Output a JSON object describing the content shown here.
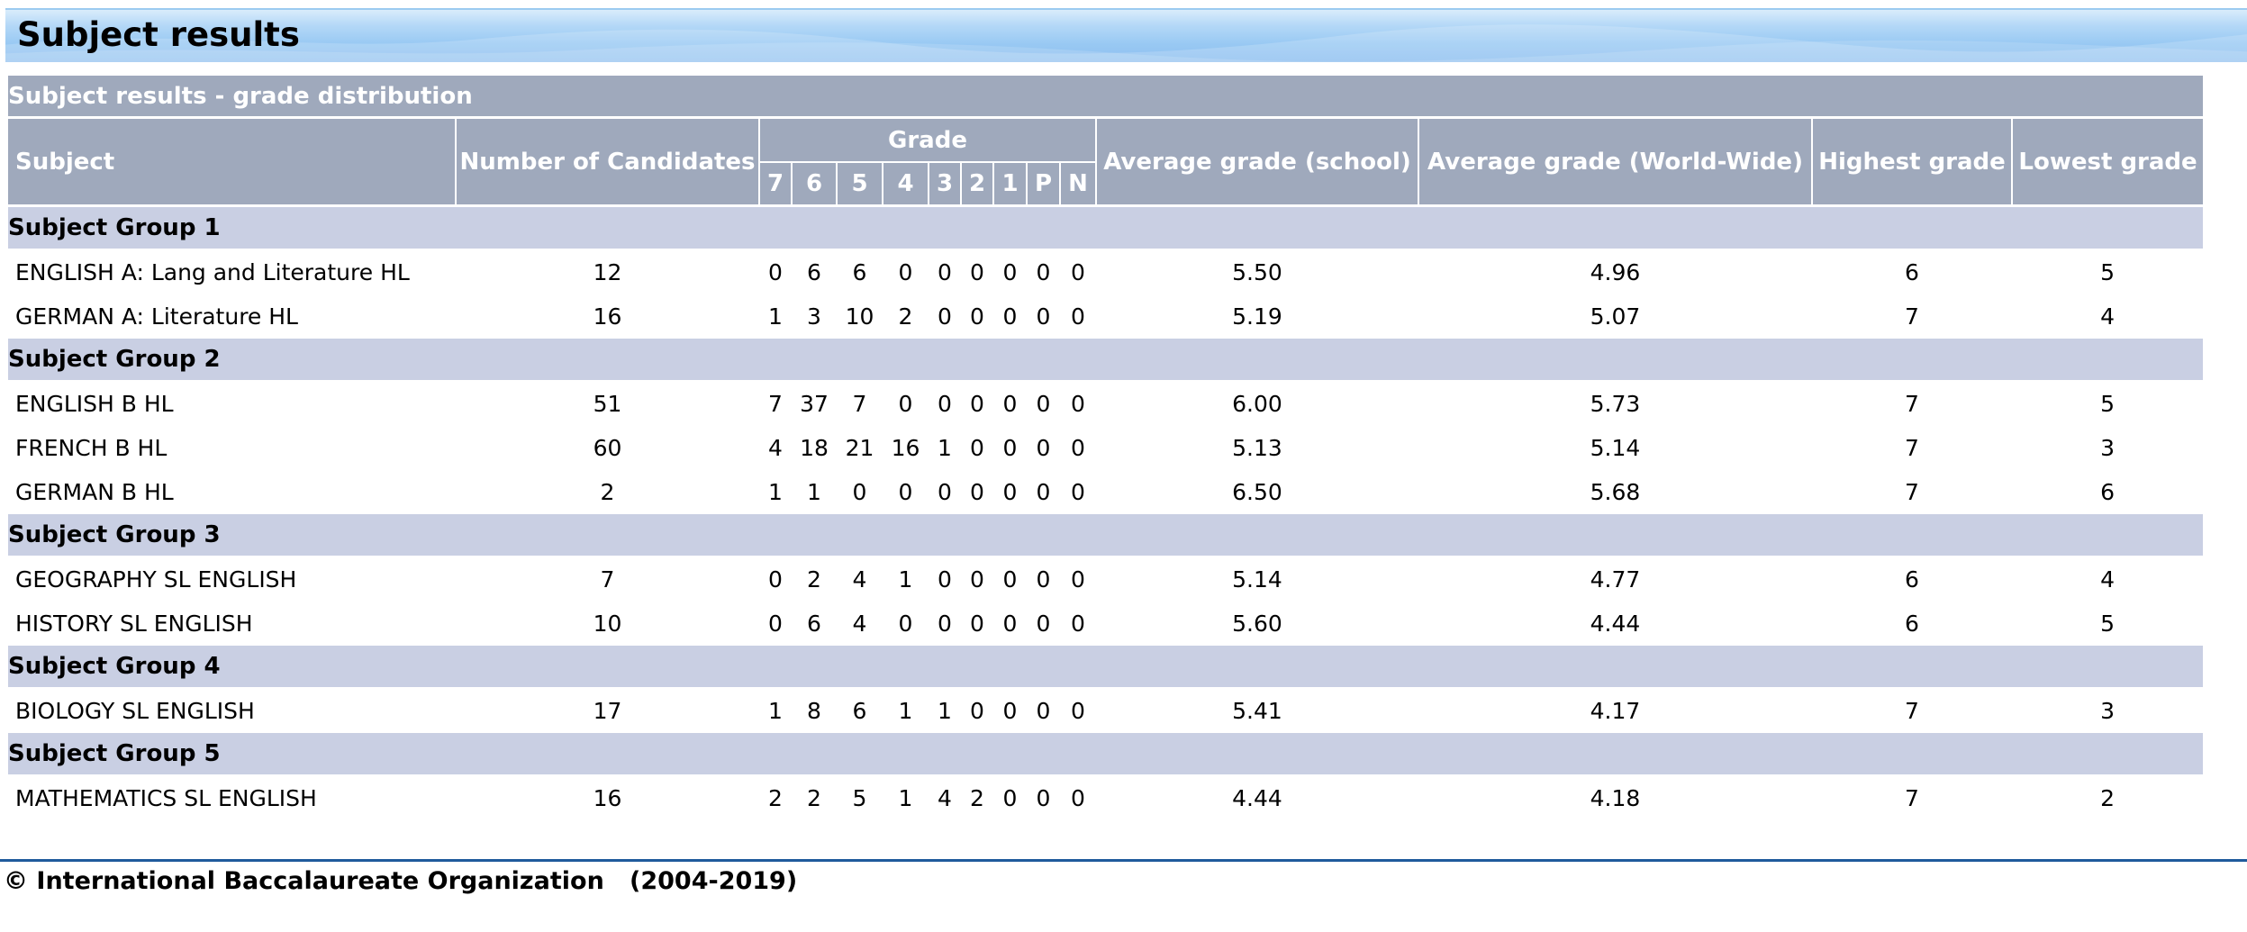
{
  "page_title": "Subject results",
  "table": {
    "caption": "Subject results - grade distribution",
    "headers": {
      "subject": "Subject",
      "candidates": "Number of Candidates",
      "grade": "Grade",
      "grade_cols": [
        "7",
        "6",
        "5",
        "4",
        "3",
        "2",
        "1",
        "P",
        "N"
      ],
      "avg_school": "Average grade (school)",
      "avg_world": "Average grade (World-Wide)",
      "highest": "Highest grade",
      "lowest": "Lowest grade"
    },
    "groups": [
      {
        "name": "Subject Group 1",
        "rows": [
          {
            "subject": "ENGLISH A: Lang and Literature HL",
            "candidates": "12",
            "grades": [
              "0",
              "6",
              "6",
              "0",
              "0",
              "0",
              "0",
              "0",
              "0"
            ],
            "avg_school": "5.50",
            "avg_world": "4.96",
            "highest": "6",
            "lowest": "5"
          },
          {
            "subject": "GERMAN A: Literature HL",
            "candidates": "16",
            "grades": [
              "1",
              "3",
              "10",
              "2",
              "0",
              "0",
              "0",
              "0",
              "0"
            ],
            "avg_school": "5.19",
            "avg_world": "5.07",
            "highest": "7",
            "lowest": "4"
          }
        ]
      },
      {
        "name": "Subject Group 2",
        "rows": [
          {
            "subject": "ENGLISH B HL",
            "candidates": "51",
            "grades": [
              "7",
              "37",
              "7",
              "0",
              "0",
              "0",
              "0",
              "0",
              "0"
            ],
            "avg_school": "6.00",
            "avg_world": "5.73",
            "highest": "7",
            "lowest": "5"
          },
          {
            "subject": "FRENCH B HL",
            "candidates": "60",
            "grades": [
              "4",
              "18",
              "21",
              "16",
              "1",
              "0",
              "0",
              "0",
              "0"
            ],
            "avg_school": "5.13",
            "avg_world": "5.14",
            "highest": "7",
            "lowest": "3"
          },
          {
            "subject": "GERMAN B HL",
            "candidates": "2",
            "grades": [
              "1",
              "1",
              "0",
              "0",
              "0",
              "0",
              "0",
              "0",
              "0"
            ],
            "avg_school": "6.50",
            "avg_world": "5.68",
            "highest": "7",
            "lowest": "6"
          }
        ]
      },
      {
        "name": "Subject Group 3",
        "rows": [
          {
            "subject": "GEOGRAPHY SL ENGLISH",
            "candidates": "7",
            "grades": [
              "0",
              "2",
              "4",
              "1",
              "0",
              "0",
              "0",
              "0",
              "0"
            ],
            "avg_school": "5.14",
            "avg_world": "4.77",
            "highest": "6",
            "lowest": "4"
          },
          {
            "subject": "HISTORY SL ENGLISH",
            "candidates": "10",
            "grades": [
              "0",
              "6",
              "4",
              "0",
              "0",
              "0",
              "0",
              "0",
              "0"
            ],
            "avg_school": "5.60",
            "avg_world": "4.44",
            "highest": "6",
            "lowest": "5"
          }
        ]
      },
      {
        "name": "Subject Group 4",
        "rows": [
          {
            "subject": "BIOLOGY SL ENGLISH",
            "candidates": "17",
            "grades": [
              "1",
              "8",
              "6",
              "1",
              "1",
              "0",
              "0",
              "0",
              "0"
            ],
            "avg_school": "5.41",
            "avg_world": "4.17",
            "highest": "7",
            "lowest": "3"
          }
        ]
      },
      {
        "name": "Subject Group 5",
        "rows": [
          {
            "subject": "MATHEMATICS SL ENGLISH",
            "candidates": "16",
            "grades": [
              "2",
              "2",
              "5",
              "1",
              "4",
              "2",
              "0",
              "0",
              "0"
            ],
            "avg_school": "4.44",
            "avg_world": "4.18",
            "highest": "7",
            "lowest": "2"
          }
        ]
      }
    ]
  },
  "footer": "© International Baccalaureate Organization   (2004-2019)",
  "colors": {
    "header_bg": "#9fa9bc",
    "group_bg": "#c9cfe3",
    "banner_blue": "#99c9f3",
    "footer_rule": "#1f5a9c"
  }
}
